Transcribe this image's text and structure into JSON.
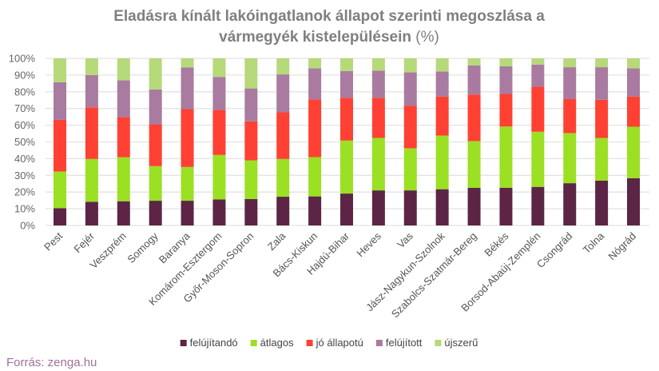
{
  "chart_data": {
    "type": "bar",
    "stacked": "percent",
    "title_line1": "Eladásra kínált lakóingatlanok állapot szerinti megoszlása a",
    "title_line2": "vármegyék kistelepülésein",
    "title_unit": "(%)",
    "ylim": [
      0,
      100
    ],
    "yticks": [
      "0%",
      "10%",
      "20%",
      "30%",
      "40%",
      "50%",
      "60%",
      "70%",
      "80%",
      "90%",
      "100%"
    ],
    "grid": true,
    "legend_placement": "bottom",
    "categories": [
      "Pest",
      "Fejér",
      "Veszprém",
      "Somogy",
      "Baranya",
      "Komárom-Esztergom",
      "Győr-Moson-Sopron",
      "Zala",
      "Bács-Kiskun",
      "Hajdú-Bihar",
      "Heves",
      "Vas",
      "Jász-Nagykun-Szolnok",
      "Szabolcs-Szatmár-Bereg",
      "Békés",
      "Borsod-Abaúj-Zemplén",
      "Csongrád",
      "Tolna",
      "Nógrád"
    ],
    "series": [
      {
        "name": "felújítandó",
        "color": "#5c2545",
        "values": [
          10.4,
          14.2,
          14.5,
          14.8,
          14.8,
          15.6,
          15.8,
          17.2,
          17.4,
          19.1,
          21.0,
          21.0,
          21.7,
          22.5,
          22.6,
          23.1,
          25.3,
          26.8,
          28.3
        ]
      },
      {
        "name": "átlagos",
        "color": "#9be022",
        "values": [
          21.9,
          25.6,
          26.3,
          20.7,
          20.2,
          26.6,
          23.2,
          22.6,
          23.5,
          31.7,
          31.4,
          25.2,
          32.1,
          28.0,
          36.6,
          33.0,
          30.0,
          25.6,
          30.8
        ]
      },
      {
        "name": "jó állapotú",
        "color": "#ff4133",
        "values": [
          30.9,
          30.9,
          24.0,
          25.0,
          34.6,
          26.9,
          23.3,
          27.9,
          34.6,
          25.6,
          24.0,
          25.5,
          23.4,
          27.8,
          19.5,
          26.9,
          20.3,
          22.8,
          18.1
        ]
      },
      {
        "name": "felújított",
        "color": "#a97ba0",
        "values": [
          22.5,
          19.3,
          22.1,
          20.9,
          25.0,
          19.8,
          19.7,
          22.7,
          18.5,
          16.0,
          16.3,
          19.9,
          15.0,
          17.4,
          16.5,
          13.3,
          19.1,
          19.5,
          16.8
        ]
      },
      {
        "name": "újszerű",
        "color": "#b6d97a",
        "values": [
          14.3,
          10.0,
          13.1,
          18.6,
          5.4,
          11.1,
          18.0,
          9.6,
          6.0,
          7.6,
          7.3,
          8.4,
          7.8,
          4.3,
          4.8,
          3.7,
          5.3,
          5.3,
          6.0
        ]
      }
    ]
  },
  "source": "Forrás: zenga.hu"
}
